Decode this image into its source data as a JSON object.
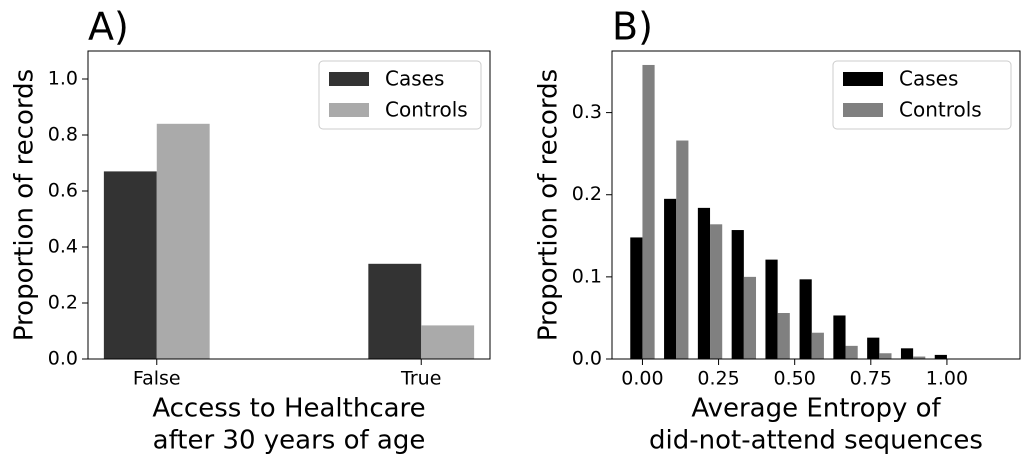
{
  "chart_data": [
    {
      "type": "bar",
      "title": "A)",
      "xlabel": [
        "Access to Healthcare",
        "after 30 years of age"
      ],
      "ylabel": "Proportion of records",
      "categories": [
        "False",
        "True"
      ],
      "series": [
        {
          "name": "Cases",
          "color": "#333333",
          "values": [
            0.67,
            0.34
          ]
        },
        {
          "name": "Controls",
          "color": "#aaaaaa",
          "values": [
            0.84,
            0.12
          ]
        }
      ],
      "ylim": [
        0,
        1.1
      ],
      "yticks": [
        {
          "value": 0,
          "label": "0.0"
        },
        0.2,
        0.4,
        0.6,
        0.8,
        {
          "value": 1,
          "label": "1.0"
        }
      ],
      "legend": "upper right"
    },
    {
      "type": "histbar",
      "title": "B)",
      "xlabel": [
        "Average Entropy of",
        "did-not-attend sequences"
      ],
      "ylabel": "Proportion of records",
      "x": [
        0,
        0.111,
        0.222,
        0.333,
        0.444,
        0.556,
        0.667,
        0.778,
        0.889,
        1.0
      ],
      "series": [
        {
          "name": "Cases",
          "color": "#000000",
          "values": [
            0.148,
            0.195,
            0.184,
            0.157,
            0.121,
            0.097,
            0.053,
            0.026,
            0.013,
            0.005
          ]
        },
        {
          "name": "Controls",
          "color": "#808080",
          "values": [
            0.358,
            0.266,
            0.164,
            0.1,
            0.056,
            0.032,
            0.016,
            0.007,
            0.003,
            0
          ]
        }
      ],
      "xlim": [
        -0.1,
        1.24
      ],
      "xticks": [
        {
          "value": 0,
          "label": "0.00"
        },
        0.25,
        {
          "value": 0.5,
          "label": "0.50"
        },
        0.75,
        {
          "value": 1,
          "label": "1.00"
        }
      ],
      "ylim": [
        0,
        0.375
      ],
      "yticks": [
        {
          "value": 0,
          "label": "0.0"
        },
        0.1,
        0.2,
        0.3
      ],
      "legend": "upper right"
    }
  ]
}
